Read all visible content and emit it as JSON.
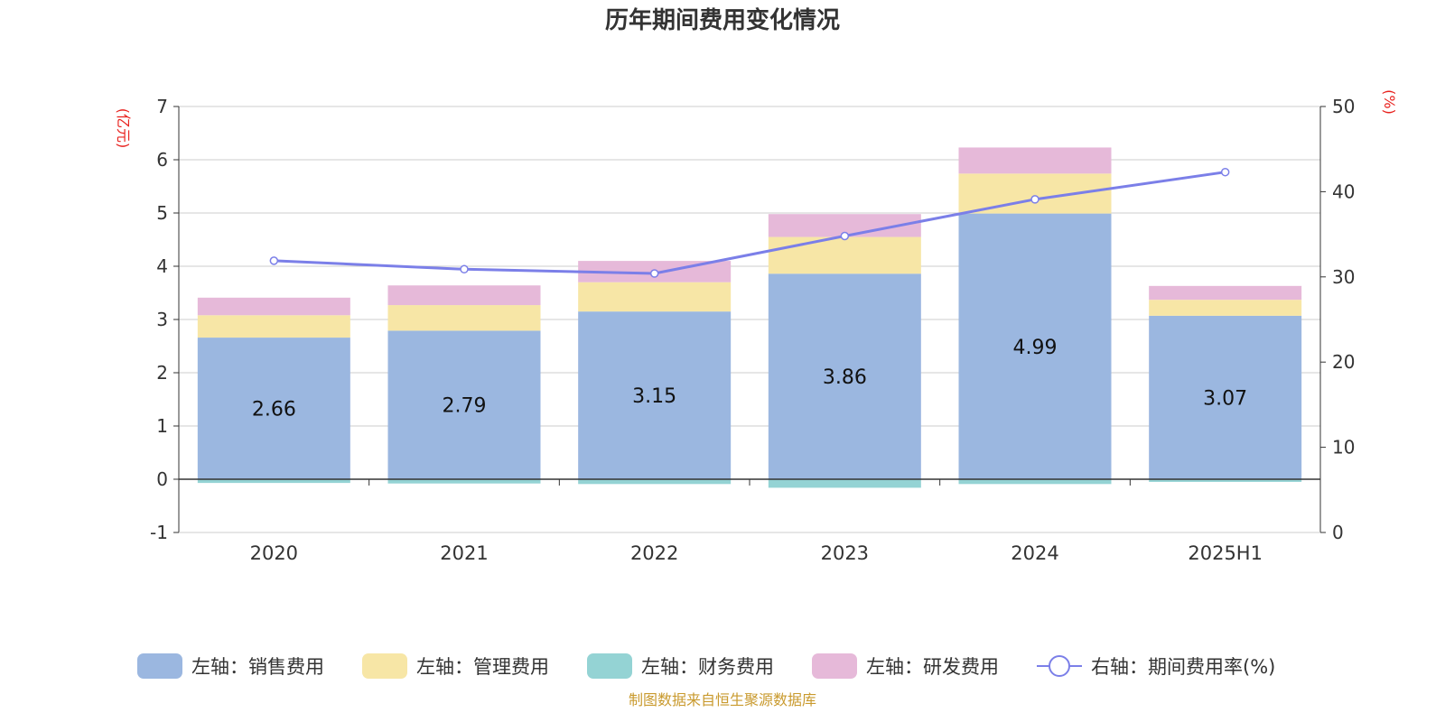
{
  "chart_data": {
    "type": "bar",
    "title": "历年期间费用变化情况",
    "categories": [
      "2020",
      "2021",
      "2022",
      "2023",
      "2024",
      "2025H1"
    ],
    "series": [
      {
        "name": "左轴：销售费用",
        "axis": "left",
        "color": "#9bb7e0",
        "values": [
          2.66,
          2.79,
          3.15,
          3.86,
          4.99,
          3.07
        ],
        "labels": [
          "2.66",
          "2.79",
          "3.15",
          "3.86",
          "4.99",
          "3.07"
        ]
      },
      {
        "name": "左轴：管理费用",
        "axis": "left",
        "color": "#f7e6a6",
        "values": [
          0.42,
          0.48,
          0.55,
          0.69,
          0.75,
          0.3
        ]
      },
      {
        "name": "左轴：财务费用",
        "axis": "left",
        "color": "#94d3d4",
        "values": [
          -0.07,
          -0.08,
          -0.09,
          -0.16,
          -0.09,
          -0.05
        ]
      },
      {
        "name": "左轴：研发费用",
        "axis": "left",
        "color": "#e6b9d9",
        "values": [
          0.33,
          0.37,
          0.4,
          0.43,
          0.49,
          0.26
        ]
      },
      {
        "name": "右轴：期间费用率(%)",
        "axis": "right",
        "type": "line",
        "color": "#7b7fe8",
        "values": [
          31.9,
          30.9,
          30.4,
          34.8,
          39.1,
          42.3
        ]
      }
    ],
    "left_axis": {
      "unit": "(亿元)",
      "ylim": [
        -1,
        7
      ],
      "ticks": [
        "-1",
        "0",
        "1",
        "2",
        "3",
        "4",
        "5",
        "6",
        "7"
      ]
    },
    "right_axis": {
      "unit": "(%)",
      "ylim": [
        0,
        50
      ],
      "ticks": [
        "0",
        "10",
        "20",
        "30",
        "40",
        "50"
      ]
    },
    "grid": true,
    "legend_position": "bottom",
    "source": "制图数据来自恒生聚源数据库"
  },
  "colors": {
    "unit_red": "#e8221e",
    "source_gold": "#c99a2e",
    "grid": "#cccccc",
    "axis": "#333333"
  }
}
